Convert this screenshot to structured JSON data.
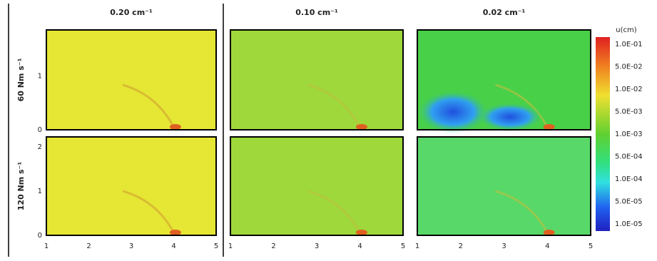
{
  "figure": {
    "columns": [
      "0.20 cm⁻¹",
      "0.10 cm⁻¹",
      "0.02 cm⁻¹"
    ],
    "rows": [
      "60 Nm s⁻¹",
      "120 Nm s⁻¹"
    ],
    "colorbar": {
      "title": "u(cm)",
      "labels": [
        "1.0E-01",
        "5.0E-02",
        "1.0E-02",
        "5.0E-03",
        "1.0E-03",
        "5.0E-04",
        "1.0E-04",
        "5.0E-05",
        "1.0E-05"
      ]
    },
    "x_ticks": [
      "1",
      "2",
      "3",
      "4",
      "5"
    ],
    "y_ticks_top": [
      "0",
      "1"
    ],
    "y_ticks_bottom": [
      "0",
      "1",
      "2"
    ]
  }
}
